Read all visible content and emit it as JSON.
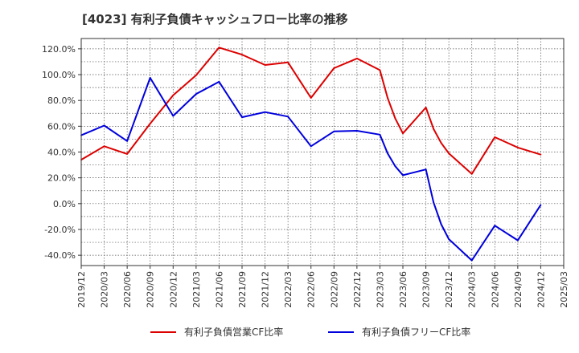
{
  "chart_data": {
    "type": "line",
    "title": "[4023]  有利子負債キャッシュフロー比率の推移",
    "xlabel": "",
    "ylabel": "",
    "x_ticks": [
      "2019/12",
      "2020/03",
      "2020/06",
      "2020/09",
      "2020/12",
      "2021/03",
      "2021/06",
      "2021/09",
      "2021/12",
      "2022/03",
      "2022/06",
      "2022/09",
      "2022/12",
      "2023/03",
      "2023/06",
      "2023/09",
      "2023/12",
      "2024/03",
      "2024/06",
      "2024/09",
      "2024/12",
      "2025/03"
    ],
    "y_ticks": [
      "120.0%",
      "100.0%",
      "80.0%",
      "60.0%",
      "40.0%",
      "20.0%",
      "0.0%",
      "-20.0%",
      "-40.0%"
    ],
    "ylim": [
      -48,
      128
    ],
    "grid": true,
    "legend_position": "bottom",
    "series": [
      {
        "name": "有利子負債営業CF比率",
        "color": "#dd0000",
        "points": [
          [
            "2019/12",
            34
          ],
          [
            "2020/03",
            44.5
          ],
          [
            "2020/06",
            38.5
          ],
          [
            "2020/09",
            62
          ],
          [
            "2020/12",
            84
          ],
          [
            "2021/03",
            99.5
          ],
          [
            "2021/06",
            121
          ],
          [
            "2021/09",
            115.5
          ],
          [
            "2021/12",
            107.5
          ],
          [
            "2022/03",
            109.5
          ],
          [
            "2022/06",
            82
          ],
          [
            "2022/09",
            105
          ],
          [
            "2022/12",
            112.5
          ],
          [
            "2023/03",
            103.5
          ],
          [
            "2023/04",
            82
          ],
          [
            "2023/05",
            66
          ],
          [
            "2023/06",
            54.5
          ],
          [
            "2023/09",
            74.5
          ],
          [
            "2023/10",
            58
          ],
          [
            "2023/11",
            47
          ],
          [
            "2023/12",
            39
          ],
          [
            "2024/03",
            23
          ],
          [
            "2024/06",
            51.5
          ],
          [
            "2024/09",
            43.5
          ],
          [
            "2024/12",
            38
          ]
        ]
      },
      {
        "name": "有利子負債フリーCF比率",
        "color": "#0000dd",
        "points": [
          [
            "2019/12",
            53
          ],
          [
            "2020/03",
            60.5
          ],
          [
            "2020/06",
            48.5
          ],
          [
            "2020/09",
            97.5
          ],
          [
            "2020/12",
            68
          ],
          [
            "2021/03",
            85
          ],
          [
            "2021/06",
            94.5
          ],
          [
            "2021/09",
            67
          ],
          [
            "2021/12",
            71
          ],
          [
            "2022/03",
            67.5
          ],
          [
            "2022/06",
            44.5
          ],
          [
            "2022/09",
            56
          ],
          [
            "2022/12",
            56.5
          ],
          [
            "2023/03",
            53.5
          ],
          [
            "2023/04",
            39
          ],
          [
            "2023/05",
            29
          ],
          [
            "2023/06",
            22
          ],
          [
            "2023/09",
            26.5
          ],
          [
            "2023/10",
            1
          ],
          [
            "2023/11",
            -16
          ],
          [
            "2023/12",
            -27.5
          ],
          [
            "2024/03",
            -44
          ],
          [
            "2024/06",
            -17
          ],
          [
            "2024/09",
            -28.5
          ],
          [
            "2024/12",
            -1
          ]
        ]
      }
    ]
  }
}
